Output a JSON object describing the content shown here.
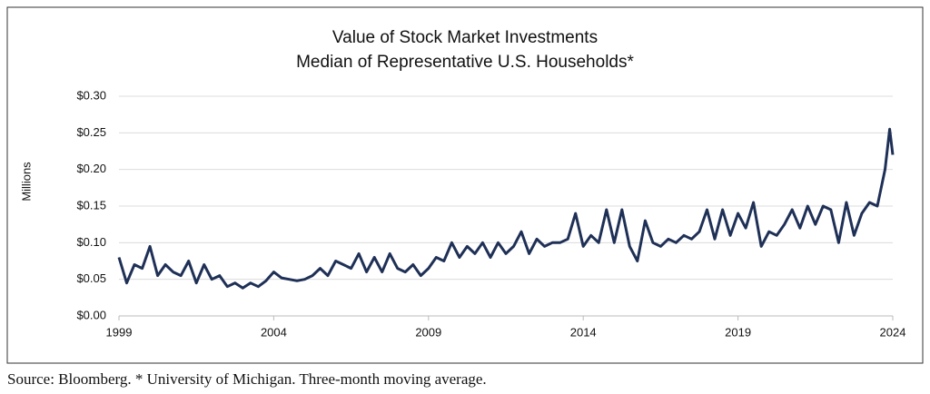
{
  "chart_data": {
    "type": "line",
    "title": "Value of Stock Market Investments",
    "subtitle": "Median of Representative U.S. Households*",
    "ylabel": "Millions",
    "source": "Source: Bloomberg. * University of Michigan. Three-month moving average.",
    "x": [
      1999,
      1999.25,
      1999.5,
      1999.75,
      2000,
      2000.25,
      2000.5,
      2000.75,
      2001,
      2001.25,
      2001.5,
      2001.75,
      2002,
      2002.25,
      2002.5,
      2002.75,
      2003,
      2003.25,
      2003.5,
      2003.75,
      2004,
      2004.25,
      2004.5,
      2004.75,
      2005,
      2005.25,
      2005.5,
      2005.75,
      2006,
      2006.25,
      2006.5,
      2006.75,
      2007,
      2007.25,
      2007.5,
      2007.75,
      2008,
      2008.25,
      2008.5,
      2008.75,
      2009,
      2009.25,
      2009.5,
      2009.75,
      2010,
      2010.25,
      2010.5,
      2010.75,
      2011,
      2011.25,
      2011.5,
      2011.75,
      2012,
      2012.25,
      2012.5,
      2012.75,
      2013,
      2013.25,
      2013.5,
      2013.75,
      2014,
      2014.25,
      2014.5,
      2014.75,
      2015,
      2015.25,
      2015.5,
      2015.75,
      2016,
      2016.25,
      2016.5,
      2016.75,
      2017,
      2017.25,
      2017.5,
      2017.75,
      2018,
      2018.25,
      2018.5,
      2018.75,
      2019,
      2019.25,
      2019.5,
      2019.75,
      2020,
      2020.25,
      2020.5,
      2020.75,
      2021,
      2021.25,
      2021.5,
      2021.75,
      2022,
      2022.25,
      2022.5,
      2022.75,
      2023,
      2023.25,
      2023.5,
      2023.75,
      2023.9,
      2024
    ],
    "series": [
      {
        "name": "Value",
        "color": "#1f3057",
        "values": [
          0.08,
          0.045,
          0.07,
          0.065,
          0.095,
          0.055,
          0.07,
          0.06,
          0.055,
          0.075,
          0.045,
          0.07,
          0.05,
          0.055,
          0.04,
          0.045,
          0.038,
          0.045,
          0.04,
          0.048,
          0.06,
          0.052,
          0.05,
          0.048,
          0.05,
          0.055,
          0.065,
          0.055,
          0.075,
          0.07,
          0.065,
          0.085,
          0.06,
          0.08,
          0.06,
          0.085,
          0.065,
          0.06,
          0.07,
          0.055,
          0.065,
          0.08,
          0.075,
          0.1,
          0.08,
          0.095,
          0.085,
          0.1,
          0.08,
          0.1,
          0.085,
          0.095,
          0.115,
          0.085,
          0.105,
          0.095,
          0.1,
          0.1,
          0.105,
          0.14,
          0.095,
          0.11,
          0.1,
          0.145,
          0.1,
          0.145,
          0.095,
          0.075,
          0.13,
          0.1,
          0.095,
          0.105,
          0.1,
          0.11,
          0.105,
          0.115,
          0.145,
          0.105,
          0.145,
          0.11,
          0.14,
          0.12,
          0.155,
          0.095,
          0.115,
          0.11,
          0.125,
          0.145,
          0.12,
          0.15,
          0.125,
          0.15,
          0.145,
          0.1,
          0.155,
          0.11,
          0.14,
          0.155,
          0.15,
          0.2,
          0.255,
          0.22
        ]
      }
    ],
    "xlim": [
      1999,
      2024
    ],
    "xticks": [
      1999,
      2004,
      2009,
      2014,
      2019,
      2024
    ],
    "ylim": [
      0,
      0.3
    ],
    "yticks": [
      {
        "value": 0,
        "label": "$0.00"
      },
      {
        "value": 0.05,
        "label": "$0.05"
      },
      {
        "value": 0.1,
        "label": "$0.10"
      },
      {
        "value": 0.15,
        "label": "$0.15"
      },
      {
        "value": 0.2,
        "label": "$0.20"
      },
      {
        "value": 0.25,
        "label": "$0.25"
      },
      {
        "value": 0.3,
        "label": "$0.30"
      }
    ],
    "grid": true
  }
}
